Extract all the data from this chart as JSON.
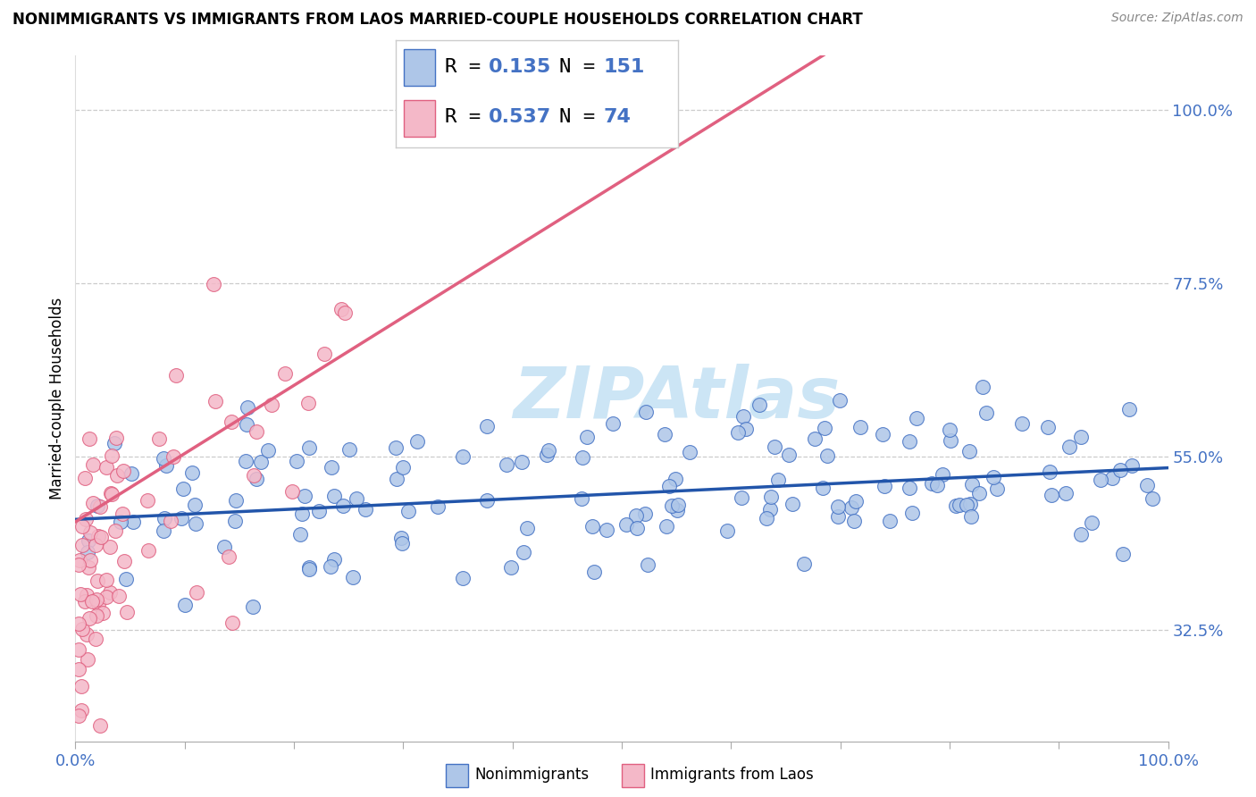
{
  "title": "NONIMMIGRANTS VS IMMIGRANTS FROM LAOS MARRIED-COUPLE HOUSEHOLDS CORRELATION CHART",
  "source": "Source: ZipAtlas.com",
  "ylabel": "Married-couple Households",
  "ytick_values": [
    0.325,
    0.55,
    0.775,
    1.0
  ],
  "ytick_labels": [
    "32.5%",
    "55.0%",
    "77.5%",
    "100.0%"
  ],
  "xlim": [
    0.0,
    1.0
  ],
  "ylim": [
    0.18,
    1.07
  ],
  "blue_color": "#aec6e8",
  "blue_edge_color": "#4472C4",
  "blue_line_color": "#2255AA",
  "pink_color": "#f4b8c8",
  "pink_edge_color": "#E06080",
  "pink_line_color": "#E06080",
  "R_blue": 0.135,
  "N_blue": 151,
  "R_pink": 0.537,
  "N_pink": 74,
  "watermark": "ZIPAtlas",
  "watermark_color": "#cce5f5",
  "label_nonimmigrants": "Nonimmigrants",
  "label_immigrants": "Immigrants from Laos",
  "tick_color": "#4472C4",
  "title_fontsize": 12,
  "source_fontsize": 10,
  "legend_fontsize": 16
}
